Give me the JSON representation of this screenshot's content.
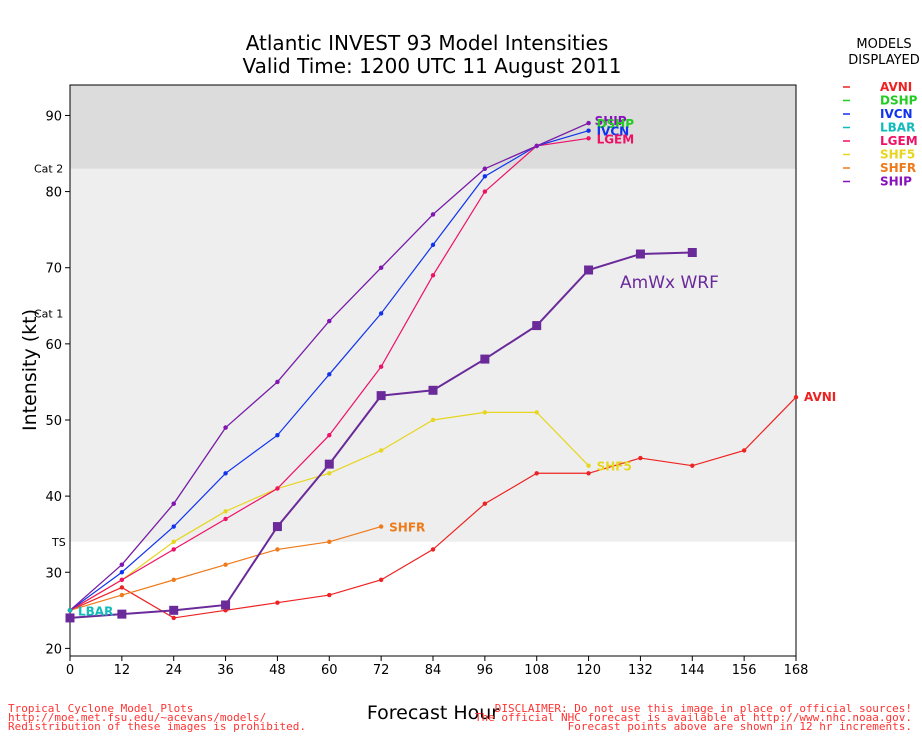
{
  "colors": {
    "AVNI": "#ee2222",
    "DSHP": "#22cc22",
    "IVCN": "#1133ee",
    "LBAR": "#11bbbb",
    "LGEM": "#ee1166",
    "SHF5": "#e6d620",
    "SHFR": "#ee7a1a",
    "SHIP": "#8811bb",
    "AmWx": "#6a2a9a",
    "band_dark": "#dcdcdc",
    "band_light": "#eeeeee",
    "footer": "#ff3333"
  },
  "chart_data": {
    "type": "line",
    "title_line1": "Atlantic INVEST 93 Model Intensities",
    "title_line2": "Valid Time: 1200 UTC 11 August 2011",
    "xlabel": "Forecast Hour",
    "ylabel": "Intensity (kt)",
    "xlim": [
      0,
      168
    ],
    "ylim": [
      19,
      94
    ],
    "xticks": [
      0,
      12,
      24,
      36,
      48,
      60,
      72,
      84,
      96,
      108,
      120,
      132,
      144,
      156,
      168
    ],
    "yticks": [
      20,
      30,
      40,
      50,
      60,
      70,
      80,
      90
    ],
    "categories": [
      {
        "label": "TS",
        "value": 34
      },
      {
        "label": "Cat 1",
        "value": 64
      },
      {
        "label": "Cat 2",
        "value": 83
      }
    ],
    "legend_title": [
      "MODELS",
      "DISPLAYED"
    ],
    "legend": [
      "AVNI",
      "DSHP",
      "IVCN",
      "LBAR",
      "LGEM",
      "SHF5",
      "SHFR",
      "SHIP"
    ],
    "series": [
      {
        "name": "AVNI",
        "x": [
          0,
          12,
          24,
          36,
          48,
          60,
          72,
          84,
          96,
          108,
          120,
          132,
          144,
          156,
          168
        ],
        "y": [
          25,
          28,
          24,
          25,
          26,
          27,
          29,
          33,
          39,
          43,
          43,
          45,
          44,
          46,
          53
        ]
      },
      {
        "name": "DSHP",
        "x": [
          0,
          12,
          24,
          36,
          48,
          60,
          72,
          84,
          96,
          108,
          120
        ],
        "y": [
          25,
          31,
          39,
          49,
          55,
          63,
          70,
          77,
          83,
          86,
          89
        ]
      },
      {
        "name": "IVCN",
        "x": [
          0,
          12,
          24,
          36,
          48,
          60,
          72,
          84,
          96,
          108,
          120
        ],
        "y": [
          25,
          30,
          36,
          43,
          48,
          56,
          64,
          73,
          82,
          86,
          88
        ]
      },
      {
        "name": "LBAR",
        "x": [
          0
        ],
        "y": [
          25
        ]
      },
      {
        "name": "LGEM",
        "x": [
          0,
          12,
          24,
          36,
          48,
          60,
          72,
          84,
          96,
          108,
          120
        ],
        "y": [
          25,
          29,
          33,
          37,
          41,
          48,
          57,
          69,
          80,
          86,
          87
        ]
      },
      {
        "name": "SHF5",
        "x": [
          0,
          12,
          24,
          36,
          48,
          60,
          72,
          84,
          96,
          108,
          120
        ],
        "y": [
          25,
          29,
          34,
          38,
          41,
          43,
          46,
          50,
          51,
          51,
          44
        ]
      },
      {
        "name": "SHFR",
        "x": [
          0,
          12,
          24,
          36,
          48,
          60,
          72
        ],
        "y": [
          25,
          27,
          29,
          31,
          33,
          34,
          36
        ]
      },
      {
        "name": "SHIP",
        "x": [
          0,
          12,
          24,
          36,
          48,
          60,
          72,
          84,
          96,
          108,
          120
        ],
        "y": [
          25,
          31,
          39,
          49,
          55,
          63,
          70,
          77,
          83,
          86,
          89
        ]
      },
      {
        "name": "AmWx WRF",
        "x": [
          0,
          12,
          24,
          36,
          48,
          60,
          72,
          84,
          96,
          108,
          120,
          132,
          144
        ],
        "y": [
          24,
          24.5,
          25,
          25.7,
          36,
          44.2,
          53.2,
          53.9,
          58,
          62.4,
          69.7,
          71.8,
          72
        ]
      }
    ],
    "end_labels": [
      {
        "series": "SHIP",
        "text": "SHIP"
      },
      {
        "series": "DSHP",
        "text": "DSHP"
      },
      {
        "series": "IVCN",
        "text": "IVCN"
      },
      {
        "series": "LGEM",
        "text": "LGEM"
      },
      {
        "series": "SHF5",
        "text": "SHF5"
      },
      {
        "series": "SHFR",
        "text": "SHFR"
      },
      {
        "series": "AVNI",
        "text": "AVNI"
      },
      {
        "series": "LBAR",
        "text": "LBAR"
      }
    ],
    "annotation": "AmWx WRF"
  },
  "footer": {
    "left": [
      "Tropical Cyclone Model Plots",
      "http://moe.met.fsu.edu/~acevans/models/",
      "Redistribution of these images is prohibited."
    ],
    "right": [
      "DISCLAIMER: Do not use this image in place of official sources!",
      "The official NHC forecast is available at http://www.nhc.noaa.gov.",
      "Forecast points above are shown in 12 hr increments."
    ]
  }
}
